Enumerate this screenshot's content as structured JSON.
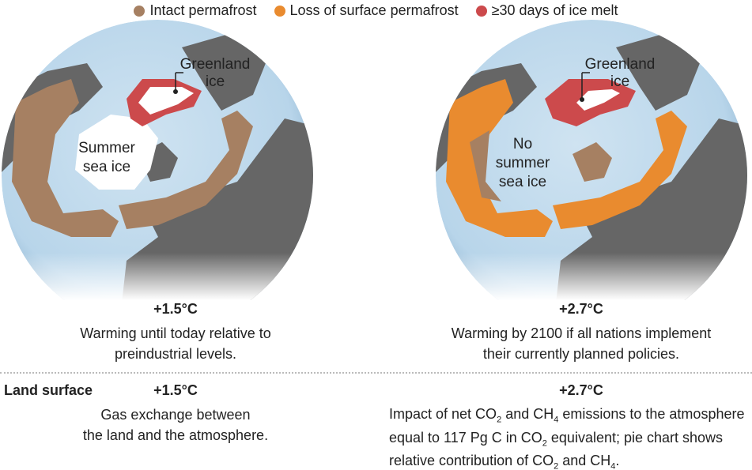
{
  "legend": [
    {
      "name": "Intact permafrost",
      "color": "#a68062"
    },
    {
      "name": "Loss of surface permafrost",
      "color": "#e98b2f"
    },
    {
      "name": "≥30 days of ice melt",
      "color": "#cc4a4c"
    }
  ],
  "globes": [
    {
      "greenland_label": [
        "Greenland",
        "ice"
      ],
      "sea_ice_label": [
        "Summer",
        "sea ice"
      ],
      "warming": "+1.5°C",
      "caption": [
        "Warming until today relative to",
        "preindustrial levels."
      ]
    },
    {
      "greenland_label": [
        "Greenland",
        "ice"
      ],
      "sea_ice_label": [
        "No",
        "summer",
        "sea ice"
      ],
      "warming": "+2.7°C",
      "caption": [
        "Warming by 2100 if all nations implement",
        "their currently planned policies."
      ]
    }
  ],
  "land_surface": {
    "label": "Land surface",
    "left": {
      "warming": "+1.5°C",
      "caption": [
        "Gas exchange between",
        "the land and the atmosphere."
      ]
    },
    "right": {
      "warming": "+2.7°C",
      "caption": [
        [
          {
            "text": "Impact of net CO"
          },
          {
            "sub": "2"
          },
          {
            "text": " and CH"
          },
          {
            "sub": "4"
          },
          {
            "text": " emissions to the atmosphere"
          }
        ],
        [
          {
            "text": "equal to 117 Pg C in CO"
          },
          {
            "sub": "2"
          },
          {
            "text": " equivalent; pie chart shows"
          }
        ],
        [
          {
            "text": "relative contribution of CO"
          },
          {
            "sub": "2"
          },
          {
            "text": " and CH"
          },
          {
            "sub": "4"
          },
          {
            "text": "."
          }
        ]
      ]
    }
  }
}
